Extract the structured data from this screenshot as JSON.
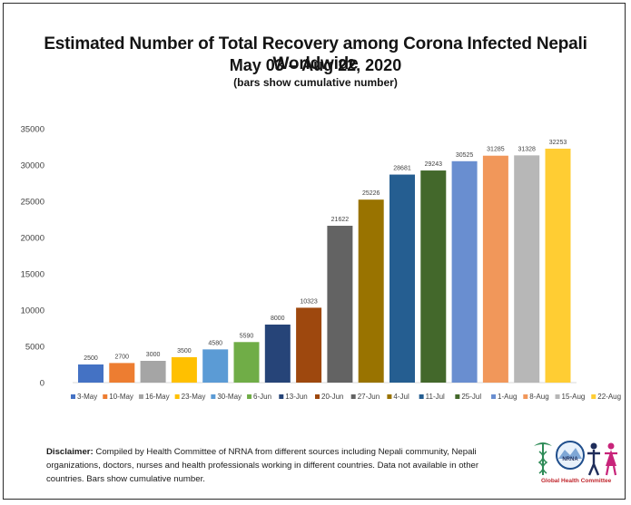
{
  "header": {
    "title": "Estimated Number of Total Recovery among Corona Infected Nepali Worldwide",
    "subtitle": "May 03 – Aug 22, 2020",
    "note": "(bars show cumulative number)"
  },
  "chart_data": {
    "type": "bar",
    "title": "Estimated Number of Total Recovery among Corona Infected Nepali Worldwide",
    "subtitle": "May 03 – Aug 22, 2020",
    "xlabel": "",
    "ylabel": "",
    "ylim": [
      0,
      35000
    ],
    "yticks": [
      0,
      5000,
      10000,
      15000,
      20000,
      25000,
      30000,
      35000
    ],
    "grid": false,
    "legend": "bottom",
    "categories": [
      "3-May",
      "10-May",
      "16-May",
      "23-May",
      "30-May",
      "6-Jun",
      "13-Jun",
      "20-Jun",
      "27-Jun",
      "4-Jul",
      "11-Jul",
      "25-Jul",
      "1-Aug",
      "8-Aug",
      "15-Aug",
      "22-Aug"
    ],
    "values": [
      2500,
      2700,
      3000,
      3500,
      4580,
      5590,
      8000,
      10323,
      21622,
      25226,
      28681,
      29243,
      30525,
      31285,
      31328,
      32253
    ],
    "colors": [
      "#4472c4",
      "#ed7d31",
      "#a5a5a5",
      "#ffc000",
      "#5b9bd5",
      "#70ad47",
      "#264478",
      "#9e480e",
      "#636363",
      "#997300",
      "#255e91",
      "#43682b",
      "#698ed0",
      "#f1975a",
      "#b7b7b7",
      "#ffcd33"
    ]
  },
  "disclaimer": {
    "label": "Disclaimer:",
    "text": " Compiled by Health Committee of NRNA from different sources including Nepali community, Nepali organizations, doctors, nurses and health professionals working in different countries. Data not available in other countries. Bars show cumulative number."
  },
  "logo": {
    "text": "Global Health Committee",
    "badge": "NRNA"
  }
}
